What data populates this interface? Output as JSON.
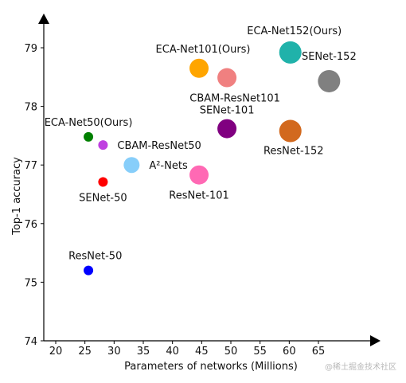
{
  "chart_data": {
    "type": "scatter",
    "title": "",
    "xlabel": "Parameters of networks (Millions)",
    "ylabel": "Top-1 accuracy",
    "xlim": [
      18.5,
      69
    ],
    "ylim": [
      74,
      79.5
    ],
    "xticks": [
      20,
      25,
      30,
      35,
      40,
      45,
      50,
      55,
      60,
      65
    ],
    "yticks": [
      74,
      75,
      76,
      77,
      78,
      79
    ],
    "points": [
      {
        "label": "ResNet-50",
        "x": 25.6,
        "y": 75.2,
        "color": "#0000ff",
        "size": "small",
        "label_pos": "above-left"
      },
      {
        "label": "SENet-50",
        "x": 28.1,
        "y": 76.71,
        "color": "#ff0000",
        "size": "small",
        "label_pos": "below"
      },
      {
        "label": "CBAM-ResNet50",
        "x": 28.1,
        "y": 77.34,
        "color": "#bf40e0",
        "size": "small",
        "label_pos": "right"
      },
      {
        "label": "ECA-Net50(Ours)",
        "x": 25.6,
        "y": 77.48,
        "color": "#008000",
        "size": "small",
        "label_pos": "above"
      },
      {
        "label": "A²-Nets",
        "x": 33.0,
        "y": 77.0,
        "color": "#87cefa",
        "size": "medium",
        "label_pos": "right"
      },
      {
        "label": "ResNet-101",
        "x": 44.55,
        "y": 76.83,
        "color": "#ff69b4",
        "size": "large",
        "label_pos": "below"
      },
      {
        "label": "SENet-101",
        "x": 49.33,
        "y": 77.62,
        "color": "#800080",
        "size": "large",
        "label_pos": "above"
      },
      {
        "label": "CBAM-ResNet101",
        "x": 49.33,
        "y": 78.49,
        "color": "#f08080",
        "size": "large",
        "label_pos": "below"
      },
      {
        "label": "ECA-Net101(Ours)",
        "x": 44.55,
        "y": 78.65,
        "color": "#ffa500",
        "size": "large",
        "label_pos": "above"
      },
      {
        "label": "ResNet-152",
        "x": 60.19,
        "y": 77.58,
        "color": "#d2691e",
        "size": "xlarge",
        "label_pos": "below"
      },
      {
        "label": "SENet-152",
        "x": 66.82,
        "y": 78.43,
        "color": "#808080",
        "size": "xlarge",
        "label_pos": "above"
      },
      {
        "label": "ECA-Net152(Ours)",
        "x": 60.19,
        "y": 78.92,
        "color": "#20b2aa",
        "size": "xlarge",
        "label_pos": "above"
      }
    ]
  },
  "watermark": "@稀土掘金技术社区"
}
